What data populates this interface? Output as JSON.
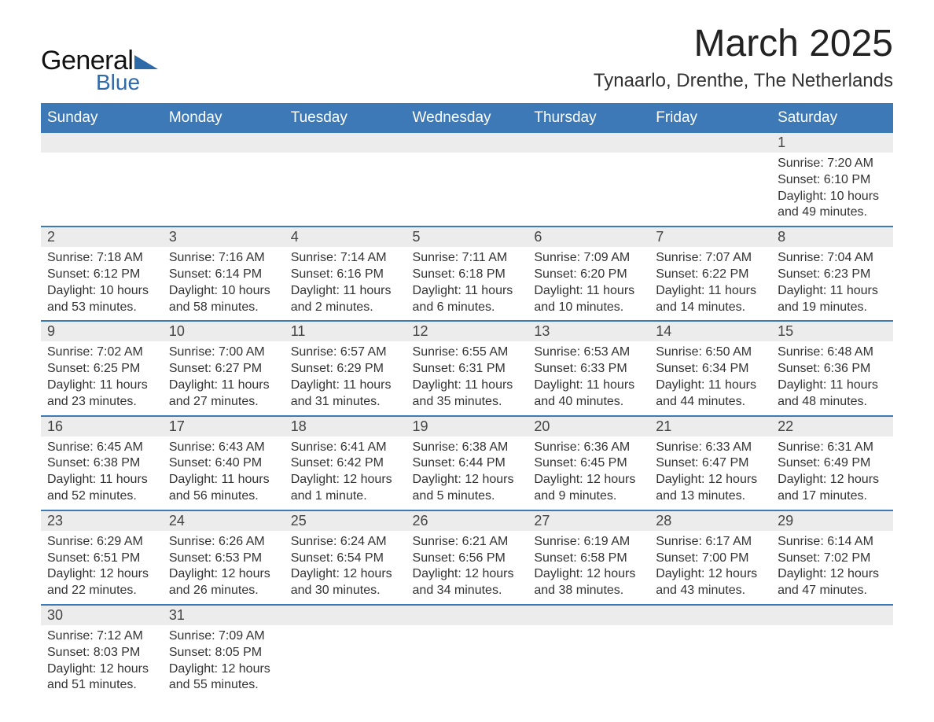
{
  "logo": {
    "text_general": "General",
    "text_blue": "Blue",
    "tri_color": "#2f6aa8"
  },
  "header": {
    "month_title": "March 2025",
    "location": "Tynaarlo, Drenthe, The Netherlands"
  },
  "colors": {
    "header_bg": "#3d79b6",
    "header_text": "#ffffff",
    "daynum_bg": "#ececec",
    "row_divider": "#3d79b6",
    "body_text": "#333333",
    "page_bg": "#ffffff"
  },
  "typography": {
    "month_title_fontsize": 48,
    "location_fontsize": 24,
    "weekday_fontsize": 19,
    "daynum_fontsize": 18,
    "detail_fontsize": 16,
    "font_family": "Arial"
  },
  "calendar": {
    "type": "table",
    "weekdays": [
      "Sunday",
      "Monday",
      "Tuesday",
      "Wednesday",
      "Thursday",
      "Friday",
      "Saturday"
    ],
    "weeks": [
      [
        null,
        null,
        null,
        null,
        null,
        null,
        {
          "n": "1",
          "sunrise": "Sunrise: 7:20 AM",
          "sunset": "Sunset: 6:10 PM",
          "day1": "Daylight: 10 hours",
          "day2": "and 49 minutes."
        }
      ],
      [
        {
          "n": "2",
          "sunrise": "Sunrise: 7:18 AM",
          "sunset": "Sunset: 6:12 PM",
          "day1": "Daylight: 10 hours",
          "day2": "and 53 minutes."
        },
        {
          "n": "3",
          "sunrise": "Sunrise: 7:16 AM",
          "sunset": "Sunset: 6:14 PM",
          "day1": "Daylight: 10 hours",
          "day2": "and 58 minutes."
        },
        {
          "n": "4",
          "sunrise": "Sunrise: 7:14 AM",
          "sunset": "Sunset: 6:16 PM",
          "day1": "Daylight: 11 hours",
          "day2": "and 2 minutes."
        },
        {
          "n": "5",
          "sunrise": "Sunrise: 7:11 AM",
          "sunset": "Sunset: 6:18 PM",
          "day1": "Daylight: 11 hours",
          "day2": "and 6 minutes."
        },
        {
          "n": "6",
          "sunrise": "Sunrise: 7:09 AM",
          "sunset": "Sunset: 6:20 PM",
          "day1": "Daylight: 11 hours",
          "day2": "and 10 minutes."
        },
        {
          "n": "7",
          "sunrise": "Sunrise: 7:07 AM",
          "sunset": "Sunset: 6:22 PM",
          "day1": "Daylight: 11 hours",
          "day2": "and 14 minutes."
        },
        {
          "n": "8",
          "sunrise": "Sunrise: 7:04 AM",
          "sunset": "Sunset: 6:23 PM",
          "day1": "Daylight: 11 hours",
          "day2": "and 19 minutes."
        }
      ],
      [
        {
          "n": "9",
          "sunrise": "Sunrise: 7:02 AM",
          "sunset": "Sunset: 6:25 PM",
          "day1": "Daylight: 11 hours",
          "day2": "and 23 minutes."
        },
        {
          "n": "10",
          "sunrise": "Sunrise: 7:00 AM",
          "sunset": "Sunset: 6:27 PM",
          "day1": "Daylight: 11 hours",
          "day2": "and 27 minutes."
        },
        {
          "n": "11",
          "sunrise": "Sunrise: 6:57 AM",
          "sunset": "Sunset: 6:29 PM",
          "day1": "Daylight: 11 hours",
          "day2": "and 31 minutes."
        },
        {
          "n": "12",
          "sunrise": "Sunrise: 6:55 AM",
          "sunset": "Sunset: 6:31 PM",
          "day1": "Daylight: 11 hours",
          "day2": "and 35 minutes."
        },
        {
          "n": "13",
          "sunrise": "Sunrise: 6:53 AM",
          "sunset": "Sunset: 6:33 PM",
          "day1": "Daylight: 11 hours",
          "day2": "and 40 minutes."
        },
        {
          "n": "14",
          "sunrise": "Sunrise: 6:50 AM",
          "sunset": "Sunset: 6:34 PM",
          "day1": "Daylight: 11 hours",
          "day2": "and 44 minutes."
        },
        {
          "n": "15",
          "sunrise": "Sunrise: 6:48 AM",
          "sunset": "Sunset: 6:36 PM",
          "day1": "Daylight: 11 hours",
          "day2": "and 48 minutes."
        }
      ],
      [
        {
          "n": "16",
          "sunrise": "Sunrise: 6:45 AM",
          "sunset": "Sunset: 6:38 PM",
          "day1": "Daylight: 11 hours",
          "day2": "and 52 minutes."
        },
        {
          "n": "17",
          "sunrise": "Sunrise: 6:43 AM",
          "sunset": "Sunset: 6:40 PM",
          "day1": "Daylight: 11 hours",
          "day2": "and 56 minutes."
        },
        {
          "n": "18",
          "sunrise": "Sunrise: 6:41 AM",
          "sunset": "Sunset: 6:42 PM",
          "day1": "Daylight: 12 hours",
          "day2": "and 1 minute."
        },
        {
          "n": "19",
          "sunrise": "Sunrise: 6:38 AM",
          "sunset": "Sunset: 6:44 PM",
          "day1": "Daylight: 12 hours",
          "day2": "and 5 minutes."
        },
        {
          "n": "20",
          "sunrise": "Sunrise: 6:36 AM",
          "sunset": "Sunset: 6:45 PM",
          "day1": "Daylight: 12 hours",
          "day2": "and 9 minutes."
        },
        {
          "n": "21",
          "sunrise": "Sunrise: 6:33 AM",
          "sunset": "Sunset: 6:47 PM",
          "day1": "Daylight: 12 hours",
          "day2": "and 13 minutes."
        },
        {
          "n": "22",
          "sunrise": "Sunrise: 6:31 AM",
          "sunset": "Sunset: 6:49 PM",
          "day1": "Daylight: 12 hours",
          "day2": "and 17 minutes."
        }
      ],
      [
        {
          "n": "23",
          "sunrise": "Sunrise: 6:29 AM",
          "sunset": "Sunset: 6:51 PM",
          "day1": "Daylight: 12 hours",
          "day2": "and 22 minutes."
        },
        {
          "n": "24",
          "sunrise": "Sunrise: 6:26 AM",
          "sunset": "Sunset: 6:53 PM",
          "day1": "Daylight: 12 hours",
          "day2": "and 26 minutes."
        },
        {
          "n": "25",
          "sunrise": "Sunrise: 6:24 AM",
          "sunset": "Sunset: 6:54 PM",
          "day1": "Daylight: 12 hours",
          "day2": "and 30 minutes."
        },
        {
          "n": "26",
          "sunrise": "Sunrise: 6:21 AM",
          "sunset": "Sunset: 6:56 PM",
          "day1": "Daylight: 12 hours",
          "day2": "and 34 minutes."
        },
        {
          "n": "27",
          "sunrise": "Sunrise: 6:19 AM",
          "sunset": "Sunset: 6:58 PM",
          "day1": "Daylight: 12 hours",
          "day2": "and 38 minutes."
        },
        {
          "n": "28",
          "sunrise": "Sunrise: 6:17 AM",
          "sunset": "Sunset: 7:00 PM",
          "day1": "Daylight: 12 hours",
          "day2": "and 43 minutes."
        },
        {
          "n": "29",
          "sunrise": "Sunrise: 6:14 AM",
          "sunset": "Sunset: 7:02 PM",
          "day1": "Daylight: 12 hours",
          "day2": "and 47 minutes."
        }
      ],
      [
        {
          "n": "30",
          "sunrise": "Sunrise: 7:12 AM",
          "sunset": "Sunset: 8:03 PM",
          "day1": "Daylight: 12 hours",
          "day2": "and 51 minutes."
        },
        {
          "n": "31",
          "sunrise": "Sunrise: 7:09 AM",
          "sunset": "Sunset: 8:05 PM",
          "day1": "Daylight: 12 hours",
          "day2": "and 55 minutes."
        },
        null,
        null,
        null,
        null,
        null
      ]
    ]
  }
}
